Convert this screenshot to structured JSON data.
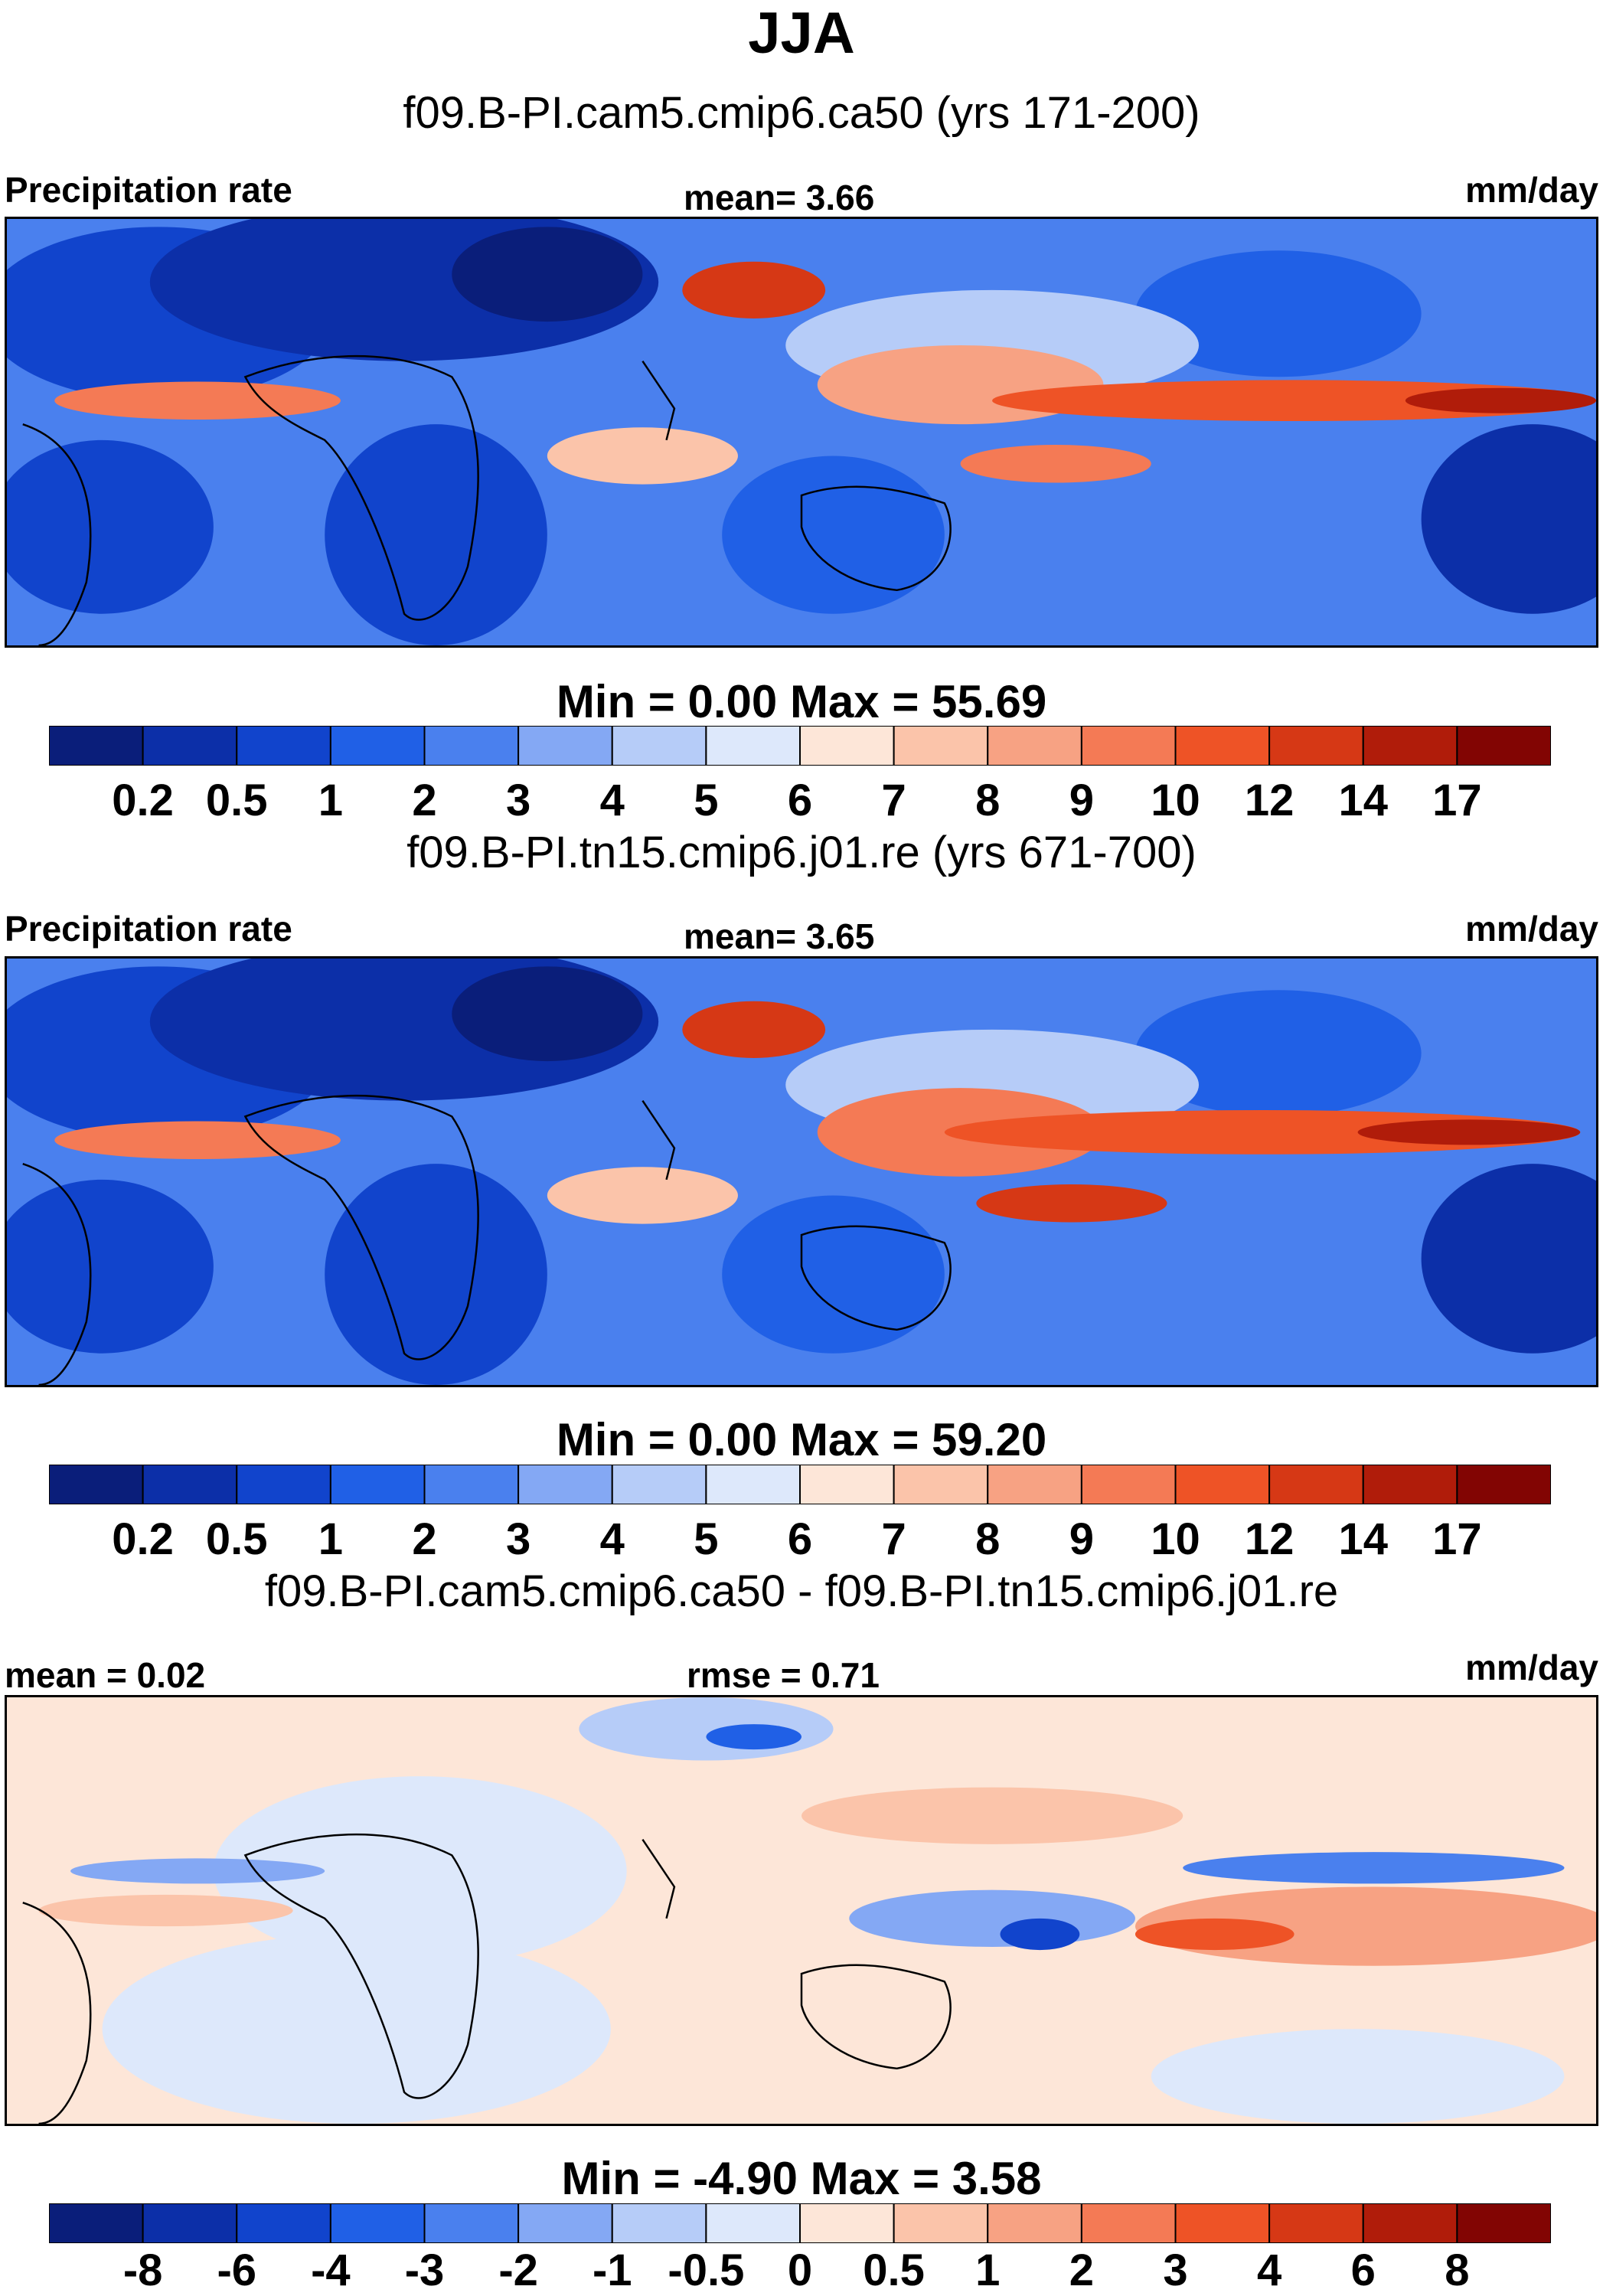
{
  "chart_data": [
    {
      "type": "heatmap",
      "title": "JJA",
      "subtitle": "f09.B-PI.cam5.cmip6.ca50 (yrs 171-200)",
      "left_label": "Precipitation rate",
      "center_label": "mean=   3.66",
      "units": "mm/day",
      "minmax": "Min =   0.00 Max =  55.69",
      "min": 0.0,
      "max": 55.69,
      "mean": 3.66,
      "levels": [
        "0.2",
        "0.5",
        "1",
        "2",
        "3",
        "4",
        "5",
        "6",
        "7",
        "8",
        "9",
        "10",
        "12",
        "14",
        "17"
      ],
      "palette": [
        "#0a1e7a",
        "#0c2fa8",
        "#1144cc",
        "#2060e6",
        "#4a80ee",
        "#84a8f4",
        "#b6ccf8",
        "#dde8fb",
        "#fde6d8",
        "#fbc4aa",
        "#f7a283",
        "#f47a55",
        "#ee5326",
        "#d63815",
        "#b01c0a",
        "#820503"
      ]
    },
    {
      "type": "heatmap",
      "subtitle": "f09.B-PI.tn15.cmip6.j01.re (yrs 671-700)",
      "left_label": "Precipitation rate",
      "center_label": "mean=   3.65",
      "units": "mm/day",
      "minmax": "Min =   0.00 Max =  59.20",
      "min": 0.0,
      "max": 59.2,
      "mean": 3.65,
      "levels": [
        "0.2",
        "0.5",
        "1",
        "2",
        "3",
        "4",
        "5",
        "6",
        "7",
        "8",
        "9",
        "10",
        "12",
        "14",
        "17"
      ],
      "palette": [
        "#0a1e7a",
        "#0c2fa8",
        "#1144cc",
        "#2060e6",
        "#4a80ee",
        "#84a8f4",
        "#b6ccf8",
        "#dde8fb",
        "#fde6d8",
        "#fbc4aa",
        "#f7a283",
        "#f47a55",
        "#ee5326",
        "#d63815",
        "#b01c0a",
        "#820503"
      ]
    },
    {
      "type": "heatmap",
      "subtitle": "f09.B-PI.cam5.cmip6.ca50 - f09.B-PI.tn15.cmip6.j01.re",
      "left_label": "mean =   0.02",
      "center_label": "rmse =   0.71",
      "units": "mm/day",
      "minmax": "Min =  -4.90 Max =   3.58",
      "min": -4.9,
      "max": 3.58,
      "mean": 0.02,
      "rmse": 0.71,
      "levels": [
        "-8",
        "-6",
        "-4",
        "-3",
        "-2",
        "-1",
        "-0.5",
        "0",
        "0.5",
        "1",
        "2",
        "3",
        "4",
        "6",
        "8"
      ],
      "palette": [
        "#0a1e7a",
        "#0c2fa8",
        "#1144cc",
        "#2060e6",
        "#4a80ee",
        "#84a8f4",
        "#b6ccf8",
        "#dde8fb",
        "#fde6d8",
        "#fbc4aa",
        "#f7a283",
        "#f47a55",
        "#ee5326",
        "#d63815",
        "#b01c0a",
        "#820503"
      ]
    }
  ]
}
